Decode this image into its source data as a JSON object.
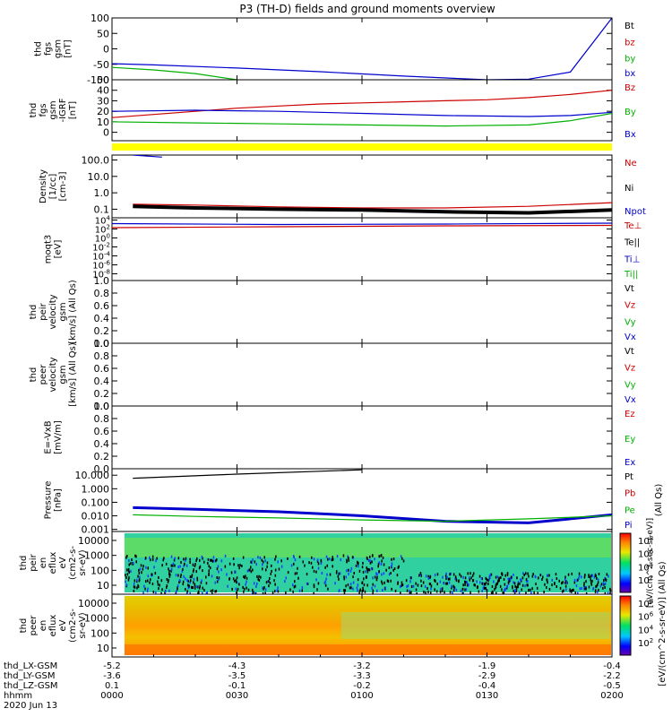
{
  "title": "P3 (TH-D) fields and ground moments overview",
  "chart_data": [
    {
      "id": "p1",
      "type": "line",
      "ylabel_lines": [
        "thd",
        "fgs",
        "gsm",
        "[nT]"
      ],
      "yticks": [
        "100",
        "50",
        "0",
        "-50",
        "-100"
      ],
      "ylim": [
        -100,
        100
      ],
      "legend": [
        {
          "label": "Bt",
          "color": "#000000"
        },
        {
          "label": "bz",
          "color": "#cc0000"
        },
        {
          "label": "by",
          "color": "#00b000"
        },
        {
          "label": "bx",
          "color": "#0000cc"
        }
      ],
      "series": [
        {
          "color": "#0000cc",
          "x": [
            0,
            10,
            30,
            50,
            70,
            90,
            100,
            110,
            120
          ],
          "y": [
            -48,
            -52,
            -62,
            -74,
            -88,
            -100,
            -98,
            -75,
            100
          ]
        },
        {
          "color": "#00b000",
          "x": [
            0,
            10,
            20,
            30
          ],
          "y": [
            -60,
            -68,
            -80,
            -100
          ]
        }
      ]
    },
    {
      "id": "p2",
      "type": "line",
      "ylabel_lines": [
        "thd",
        "fgs",
        "gsm",
        "-IGRF",
        "[nT]"
      ],
      "yticks": [
        "50",
        "40",
        "30",
        "20",
        "10",
        "0"
      ],
      "ylim": [
        -8,
        50
      ],
      "legend": [
        {
          "label": "Bz",
          "color": "#cc0000"
        },
        {
          "label": "By",
          "color": "#00b000"
        },
        {
          "label": "Bx",
          "color": "#0000cc"
        }
      ],
      "series": [
        {
          "color": "#cc0000",
          "x": [
            0,
            10,
            20,
            30,
            40,
            50,
            60,
            70,
            80,
            90,
            100,
            110,
            120
          ],
          "y": [
            14,
            17,
            20,
            23,
            25,
            27,
            28,
            29,
            30,
            31,
            33,
            36,
            40
          ]
        },
        {
          "color": "#0000cc",
          "x": [
            0,
            20,
            40,
            60,
            80,
            100,
            110,
            120
          ],
          "y": [
            20,
            21,
            20,
            18,
            16,
            15,
            16,
            19
          ]
        },
        {
          "color": "#00b000",
          "x": [
            0,
            20,
            40,
            60,
            80,
            100,
            110,
            120
          ],
          "y": [
            10,
            9,
            8,
            7,
            6,
            7,
            11,
            18
          ]
        }
      ]
    },
    {
      "id": "p3",
      "type": "line",
      "scale": "log",
      "ylabel_lines": [
        "Density",
        "[1/cc]",
        "[cm-3]"
      ],
      "yticks": [
        "100.0",
        "10.0",
        "1.0",
        "0.1"
      ],
      "ylim": [
        0.03,
        200
      ],
      "legend": [
        {
          "label": "Ne",
          "color": "#cc0000"
        },
        {
          "label": "Ni",
          "color": "#000000"
        },
        {
          "label": "Npot",
          "color": "#0000cc"
        }
      ],
      "series": [
        {
          "color": "#cc0000",
          "x": [
            5,
            20,
            40,
            60,
            80,
            100,
            120
          ],
          "y": [
            0.2,
            0.18,
            0.14,
            0.12,
            0.12,
            0.15,
            0.25
          ]
        },
        {
          "color": "#000000",
          "x": [
            5,
            20,
            40,
            60,
            80,
            100,
            120
          ],
          "y": [
            0.15,
            0.12,
            0.1,
            0.09,
            0.07,
            0.06,
            0.09
          ]
        },
        {
          "color": "#0000cc",
          "x": [
            5,
            12
          ],
          "y": [
            200,
            150
          ]
        }
      ]
    },
    {
      "id": "p4",
      "type": "line",
      "scale": "log",
      "ylabel_lines": [
        "moqt3",
        "[eV]"
      ],
      "ytick_exponents": [
        "4",
        "2",
        "0",
        "-2",
        "-4",
        "-6",
        "-8"
      ],
      "ylim_exp": [
        -9.5,
        4.5
      ],
      "legend": [
        {
          "label": "Te⊥",
          "color": "#cc0000"
        },
        {
          "label": "Te||",
          "color": "#000000"
        },
        {
          "label": "Ti⊥",
          "color": "#0000cc"
        },
        {
          "label": "Ti||",
          "color": "#00b000"
        }
      ],
      "series": [
        {
          "color": "#0000cc",
          "x": [
            0,
            40,
            80,
            120
          ],
          "y_exp": [
            3.2,
            3.0,
            3.1,
            3.3
          ]
        },
        {
          "color": "#cc0000",
          "x": [
            0,
            40,
            80,
            120
          ],
          "y_exp": [
            2.3,
            2.5,
            2.7,
            2.8
          ]
        }
      ]
    },
    {
      "id": "p5",
      "type": "line",
      "ylabel_lines": [
        "thd",
        "peir",
        "velocity",
        "gsm",
        "[km/s] (All Qs)"
      ],
      "yticks": [
        "1.0",
        "0.8",
        "0.6",
        "0.4",
        "0.2",
        "0.0"
      ],
      "ylim": [
        0,
        1
      ],
      "legend": [
        {
          "label": "Vt",
          "color": "#000000"
        },
        {
          "label": "Vz",
          "color": "#cc0000"
        },
        {
          "label": "Vy",
          "color": "#00b000"
        },
        {
          "label": "Vx",
          "color": "#0000cc"
        }
      ],
      "series": []
    },
    {
      "id": "p6",
      "type": "line",
      "ylabel_lines": [
        "thd",
        "peer",
        "velocity",
        "gsm",
        "[km/s] (All Qs)"
      ],
      "yticks": [
        "1.0",
        "0.8",
        "0.6",
        "0.4",
        "0.2",
        "0.0"
      ],
      "ylim": [
        0,
        1
      ],
      "legend": [
        {
          "label": "Vt",
          "color": "#000000"
        },
        {
          "label": "Vz",
          "color": "#cc0000"
        },
        {
          "label": "Vy",
          "color": "#00b000"
        },
        {
          "label": "Vx",
          "color": "#0000cc"
        }
      ],
      "series": []
    },
    {
      "id": "p7",
      "type": "line",
      "ylabel_lines": [
        "E=-VxB",
        "[mV/m]"
      ],
      "yticks": [
        "1.0",
        "0.8",
        "0.6",
        "0.4",
        "0.2",
        "0.0"
      ],
      "ylim": [
        0,
        1
      ],
      "legend": [
        {
          "label": "Ez",
          "color": "#cc0000"
        },
        {
          "label": "Ey",
          "color": "#00b000"
        },
        {
          "label": "Ex",
          "color": "#0000cc"
        }
      ],
      "series": []
    },
    {
      "id": "p8",
      "type": "line",
      "scale": "log",
      "ylabel_lines": [
        "Pressure",
        "[nPa]"
      ],
      "yticks": [
        "10.000",
        "1.000",
        "0.100",
        "0.010",
        "0.001"
      ],
      "ylim": [
        0.0007,
        30
      ],
      "legend": [
        {
          "label": "Pt",
          "color": "#000000"
        },
        {
          "label": "Pb",
          "color": "#cc0000"
        },
        {
          "label": "Pe",
          "color": "#00b000"
        },
        {
          "label": "Pi",
          "color": "#0000cc"
        }
      ],
      "legend_note": "(All Qs)",
      "series": [
        {
          "color": "#000000",
          "x": [
            5,
            30,
            60
          ],
          "y": [
            6,
            12,
            25
          ]
        },
        {
          "color": "#0000cc",
          "x": [
            5,
            20,
            40,
            60,
            80,
            100,
            120
          ],
          "y": [
            0.04,
            0.03,
            0.02,
            0.01,
            0.004,
            0.003,
            0.012
          ]
        },
        {
          "color": "#00b000",
          "x": [
            5,
            20,
            40,
            60,
            80,
            100,
            120
          ],
          "y": [
            0.012,
            0.009,
            0.007,
            0.005,
            0.004,
            0.006,
            0.01
          ]
        }
      ]
    },
    {
      "id": "p9",
      "type": "heatmap",
      "ylabel_lines": [
        "thd",
        "peir",
        "en",
        "eflux",
        "eV",
        "(cm2-s-",
        "sr-eV)"
      ],
      "yticks": [
        "10000",
        "1000",
        "100",
        "10"
      ],
      "colorbar_exponents": [
        "8",
        "6",
        "4",
        "2"
      ]
    },
    {
      "id": "p10",
      "type": "heatmap",
      "ylabel_lines": [
        "thd",
        "peer",
        "en",
        "eflux",
        "eV",
        "(cm2-s-",
        "sr-eV)"
      ],
      "yticks": [
        "10000",
        "1000",
        "100",
        "10"
      ],
      "colorbar_exponents": [
        "8",
        "6",
        "4",
        "2"
      ]
    }
  ],
  "colorbar_label": "[eV/(cm^2-s-sr-eV)] (All Qs)",
  "colorbar_label_p9": "[eV/(cm^2-sec-sr-eV)]",
  "xaxis": {
    "rows": [
      {
        "label": "thd_LX-GSM",
        "values": [
          "-5.2",
          "-4.3",
          "-3.2",
          "-1.9",
          "-0.4"
        ]
      },
      {
        "label": "thd_LY-GSM",
        "values": [
          "-3.6",
          "-3.5",
          "-3.3",
          "-2.9",
          "-2.2"
        ]
      },
      {
        "label": "thd_LZ-GSM",
        "values": [
          "0.1",
          "-0.1",
          "-0.2",
          "-0.4",
          "-0.5"
        ]
      },
      {
        "label": "hhmm",
        "values": [
          "0000",
          "0030",
          "0100",
          "0130",
          "0200"
        ]
      }
    ],
    "date": "2020 Jun 13",
    "tick_minutes": [
      0,
      30,
      60,
      90,
      120
    ]
  }
}
